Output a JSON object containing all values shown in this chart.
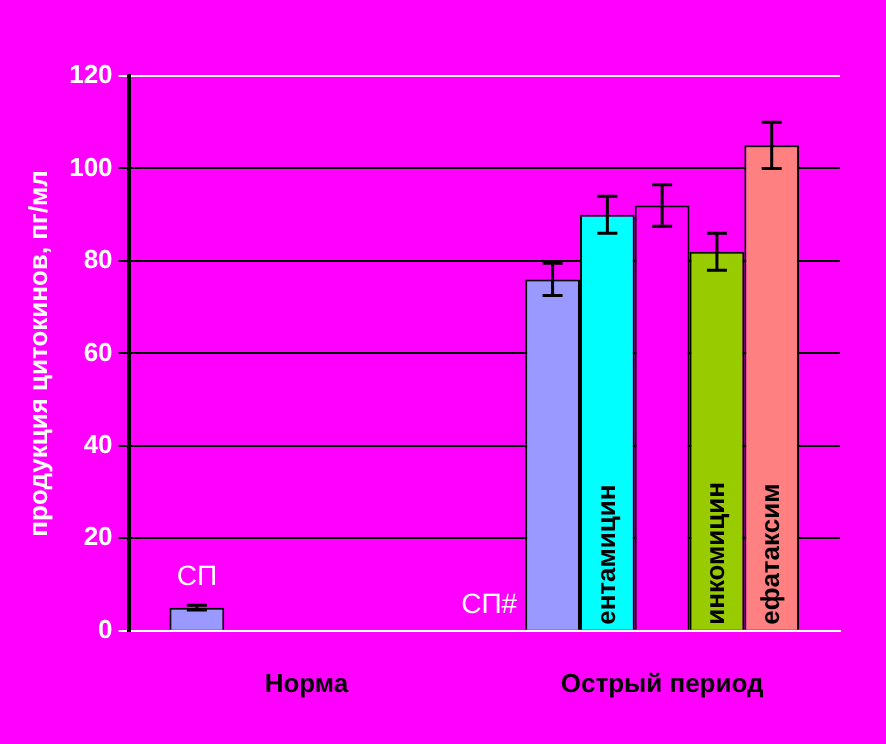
{
  "chart_data": {
    "type": "bar",
    "ylabel": "продукция цитокинов, пг/мл",
    "categories": [
      "Норма",
      "Острый период"
    ],
    "series": [
      {
        "color": "#9999ff",
        "values": [
          5,
          76
        ],
        "errors": [
          0.5,
          3.5
        ]
      },
      {
        "name": "ентамицин",
        "color": "#00ffff",
        "values": [
          null,
          90
        ],
        "errors": [
          null,
          4
        ]
      },
      {
        "color": "#ff00ff",
        "values": [
          null,
          92
        ],
        "errors": [
          null,
          4.5
        ]
      },
      {
        "name": "инкомицин",
        "color": "#99cc00",
        "values": [
          null,
          82
        ],
        "errors": [
          null,
          4
        ]
      },
      {
        "name": "ефатаксим",
        "color": "#ff8080",
        "values": [
          null,
          105
        ],
        "errors": [
          null,
          5
        ]
      }
    ],
    "ylim": [
      0,
      120
    ],
    "yticks": [
      0,
      20,
      40,
      60,
      80,
      100,
      120
    ],
    "grid": "y",
    "legend": false,
    "annotations": [
      "СП",
      "СП#"
    ]
  }
}
